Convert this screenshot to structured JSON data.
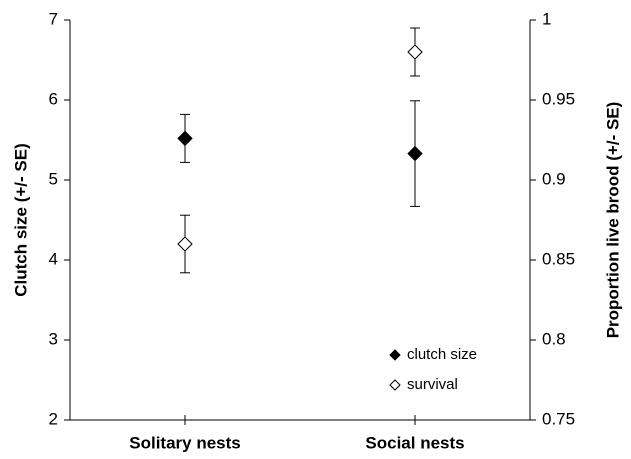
{
  "chart_data": {
    "type": "errorbar",
    "categories": [
      "Solitary nests",
      "Social nests"
    ],
    "ylabel": "Clutch size (+/- SE)",
    "y2label": "Proportion live brood (+/- SE)",
    "ylim": [
      2,
      7
    ],
    "yticks": [
      2,
      3,
      4,
      5,
      6,
      7
    ],
    "y2lim": [
      0.75,
      1
    ],
    "y2ticks": [
      0.75,
      0.8,
      0.85,
      0.9,
      0.95,
      1
    ],
    "legend": "lower right",
    "series": [
      {
        "name": "clutch size",
        "color": "#000000",
        "marker": "filled-diamond",
        "values": [
          5.52,
          5.33
        ],
        "errors": [
          0.3,
          0.66
        ]
      },
      {
        "name": "survival",
        "color": "#000000",
        "marker": "open-diamond",
        "axis": "y2",
        "values": [
          0.86,
          0.98
        ],
        "errors": [
          0.018,
          0.015
        ]
      }
    ]
  }
}
